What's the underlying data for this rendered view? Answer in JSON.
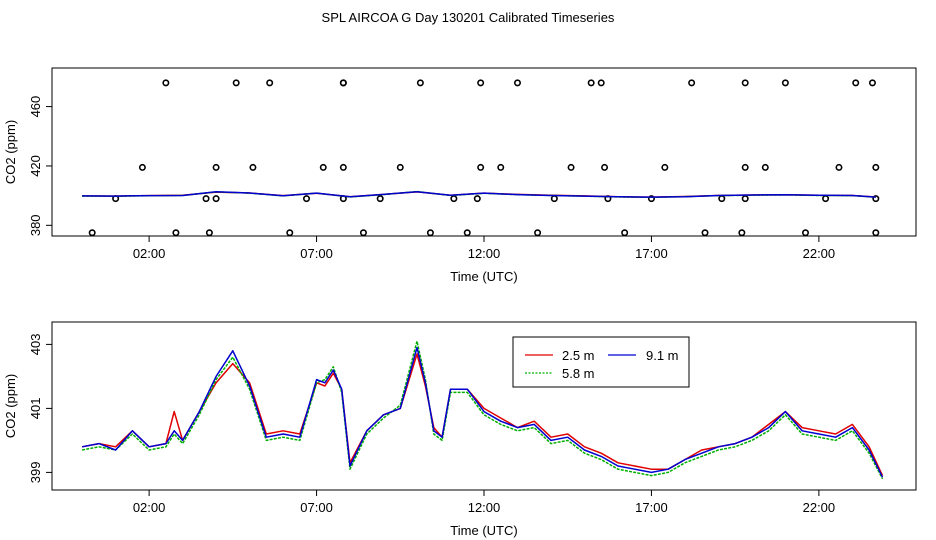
{
  "title": "SPL AIRCOA G  Day 130201  Calibrated Timeseries",
  "colors": {
    "2.5 m": "#e00000",
    "5.8 m": "#00b000",
    "9.1 m": "#0000d0",
    "axis": "#000000"
  },
  "chart_data": [
    {
      "type": "scatter+line",
      "xlabel": "Time (UTC)",
      "ylabel": "CO2 (ppm)",
      "xlim": [
        -0.9,
        24.9
      ],
      "ylim": [
        372.8,
        486
      ],
      "x_ticks": [
        2,
        7,
        12,
        17,
        22
      ],
      "x_tick_labels": [
        "02:00",
        "07:00",
        "12:00",
        "17:00",
        "22:00"
      ],
      "y_ticks": [
        380,
        420,
        460
      ],
      "y_tick_labels": [
        "380",
        "420",
        "460"
      ],
      "flagged_points": {
        "x": [
          0.3,
          1.0,
          1.8,
          2.5,
          2.8,
          3.7,
          3.8,
          4.0,
          4.0,
          4.6,
          5.1,
          5.6,
          6.2,
          6.7,
          7.2,
          7.8,
          7.8,
          7.8,
          7.8,
          8.4,
          8.9,
          9.5,
          10.1,
          10.4,
          11.1,
          11.5,
          11.8,
          11.9,
          11.9,
          12.5,
          13.0,
          13.6,
          14.1,
          14.6,
          15.2,
          15.5,
          15.6,
          15.7,
          16.2,
          17.0,
          17.4,
          18.2,
          18.6,
          19.1,
          19.7,
          19.8,
          19.8,
          19.8,
          20.4,
          21.0,
          21.6,
          22.2,
          22.6,
          23.1,
          23.6,
          23.7,
          23.7,
          23.7
        ],
        "y": [
          375,
          398,
          419,
          476,
          375,
          398,
          375,
          398,
          419,
          476,
          419,
          476,
          375,
          398,
          419,
          476,
          476,
          419,
          398,
          375,
          398,
          419,
          476,
          375,
          398,
          375,
          398,
          419,
          476,
          419,
          476,
          375,
          398,
          419,
          476,
          476,
          419,
          398,
          375,
          398,
          419,
          476,
          375,
          398,
          375,
          398,
          419,
          476,
          419,
          476,
          375,
          398,
          419,
          476,
          476,
          419,
          398,
          375
        ]
      },
      "series": [
        {
          "name": "2.5 m",
          "color": "#e00000",
          "x": [
            0,
            1,
            2,
            3,
            4,
            5,
            6,
            7,
            8,
            9,
            10,
            11,
            12,
            13,
            14,
            15,
            16,
            17,
            18,
            19,
            20,
            21,
            22,
            23,
            23.7
          ],
          "y": [
            399.8,
            399.7,
            400.0,
            400.2,
            402.4,
            401.8,
            400.0,
            401.6,
            399.3,
            400.8,
            402.5,
            400.2,
            401.7,
            400.8,
            400.2,
            399.8,
            399.2,
            399.0,
            399.4,
            400.1,
            400.4,
            400.6,
            400.2,
            400.1,
            399.1
          ]
        },
        {
          "name": "5.8 m",
          "color": "#00b000",
          "x": [
            0,
            1,
            2,
            3,
            4,
            5,
            6,
            7,
            8,
            9,
            10,
            11,
            12,
            13,
            14,
            15,
            16,
            17,
            18,
            19,
            20,
            21,
            22,
            23,
            23.7
          ],
          "y": [
            399.7,
            399.6,
            399.9,
            400.1,
            402.5,
            401.7,
            399.8,
            401.7,
            399.1,
            400.7,
            402.8,
            400.1,
            401.6,
            400.6,
            400.1,
            399.6,
            399.1,
            398.9,
            399.3,
            400.0,
            400.3,
            400.5,
            400.1,
            400.0,
            398.9
          ]
        },
        {
          "name": "9.1 m",
          "color": "#0000d0",
          "x": [
            0,
            1,
            2,
            3,
            4,
            5,
            6,
            7,
            8,
            9,
            10,
            11,
            12,
            13,
            14,
            15,
            16,
            17,
            18,
            19,
            20,
            21,
            22,
            23,
            23.7
          ],
          "y": [
            399.8,
            399.7,
            400.0,
            400.1,
            402.6,
            401.8,
            399.9,
            401.7,
            399.2,
            400.8,
            402.6,
            400.2,
            401.7,
            400.7,
            400.1,
            399.7,
            399.2,
            399.0,
            399.3,
            400.1,
            400.4,
            400.6,
            400.2,
            400.1,
            399.0
          ]
        }
      ]
    },
    {
      "type": "line",
      "xlabel": "Time (UTC)",
      "ylabel": "CO2 (ppm)",
      "xlim": [
        -0.9,
        24.9
      ],
      "ylim": [
        398.45,
        403.7
      ],
      "x_ticks": [
        2,
        7,
        12,
        17,
        22
      ],
      "x_tick_labels": [
        "02:00",
        "07:00",
        "12:00",
        "17:00",
        "22:00"
      ],
      "y_ticks": [
        399,
        401,
        403
      ],
      "y_tick_labels": [
        "399",
        "401",
        "403"
      ],
      "legend": {
        "position": "top-center",
        "entries": [
          "2.5 m",
          "5.8 m",
          "9.1 m"
        ]
      },
      "series": [
        {
          "name": "2.5 m",
          "color": "#e00000",
          "x": [
            0,
            0.5,
            1,
            1.5,
            2,
            2.5,
            2.75,
            3,
            3.5,
            4,
            4.5,
            5,
            5.5,
            6,
            6.5,
            7,
            7.25,
            7.5,
            7.75,
            8,
            8.5,
            9,
            9.5,
            10,
            10.25,
            10.5,
            10.75,
            11,
            11.5,
            12,
            12.5,
            13,
            13.5,
            14,
            14.5,
            15,
            15.5,
            16,
            16.5,
            17,
            17.5,
            18,
            18.5,
            19,
            19.5,
            20,
            20.5,
            21,
            21.5,
            22,
            22.5,
            23,
            23.5,
            23.9
          ],
          "y": [
            399.8,
            399.9,
            399.8,
            400.3,
            399.8,
            399.9,
            400.9,
            400.0,
            400.9,
            401.8,
            402.4,
            401.8,
            400.2,
            400.3,
            400.2,
            401.8,
            401.7,
            402.1,
            401.6,
            399.3,
            400.3,
            400.8,
            401.0,
            402.7,
            401.7,
            400.4,
            400.1,
            401.6,
            401.6,
            401.0,
            400.7,
            400.4,
            400.6,
            400.1,
            400.2,
            399.8,
            399.6,
            399.3,
            399.2,
            399.1,
            399.1,
            399.4,
            399.7,
            399.8,
            399.9,
            400.1,
            400.5,
            400.9,
            400.4,
            400.3,
            400.2,
            400.5,
            399.8,
            398.9
          ]
        },
        {
          "name": "5.8 m",
          "color": "#00b000",
          "x": [
            0,
            0.5,
            1,
            1.5,
            2,
            2.5,
            2.75,
            3,
            3.5,
            4,
            4.5,
            5,
            5.5,
            6,
            6.5,
            7,
            7.25,
            7.5,
            7.75,
            8,
            8.5,
            9,
            9.5,
            10,
            10.25,
            10.5,
            10.75,
            11,
            11.5,
            12,
            12.5,
            13,
            13.5,
            14,
            14.5,
            15,
            15.5,
            16,
            16.5,
            17,
            17.5,
            18,
            18.5,
            19,
            19.5,
            20,
            20.5,
            21,
            21.5,
            22,
            22.5,
            23,
            23.5,
            23.9
          ],
          "y": [
            399.7,
            399.8,
            399.7,
            400.2,
            399.7,
            399.8,
            400.2,
            399.9,
            400.8,
            401.9,
            402.6,
            401.6,
            400.0,
            400.1,
            400.0,
            401.8,
            401.9,
            402.3,
            401.5,
            399.1,
            400.2,
            400.7,
            401.1,
            403.1,
            401.9,
            400.2,
            400.0,
            401.5,
            401.5,
            400.8,
            400.5,
            400.3,
            400.4,
            399.9,
            400.0,
            399.6,
            399.4,
            399.1,
            399.0,
            398.9,
            399.0,
            399.3,
            399.5,
            399.7,
            399.8,
            400.0,
            400.3,
            400.8,
            400.2,
            400.1,
            400.0,
            400.3,
            399.6,
            398.8
          ]
        },
        {
          "name": "9.1 m",
          "color": "#0000d0",
          "x": [
            0,
            0.5,
            1,
            1.5,
            2,
            2.5,
            2.75,
            3,
            3.5,
            4,
            4.5,
            5,
            5.5,
            6,
            6.5,
            7,
            7.25,
            7.5,
            7.75,
            8,
            8.5,
            9,
            9.5,
            10,
            10.25,
            10.5,
            10.75,
            11,
            11.5,
            12,
            12.5,
            13,
            13.5,
            14,
            14.5,
            15,
            15.5,
            16,
            16.5,
            17,
            17.5,
            18,
            18.5,
            19,
            19.5,
            20,
            20.5,
            21,
            21.5,
            22,
            22.5,
            23,
            23.5,
            23.9
          ],
          "y": [
            399.8,
            399.9,
            399.7,
            400.3,
            399.8,
            399.9,
            400.3,
            400.0,
            400.9,
            402.0,
            402.8,
            401.7,
            400.1,
            400.2,
            400.1,
            401.9,
            401.8,
            402.2,
            401.6,
            399.2,
            400.3,
            400.8,
            401.0,
            402.9,
            401.8,
            400.3,
            400.1,
            401.6,
            401.6,
            400.9,
            400.6,
            400.4,
            400.5,
            400.0,
            400.1,
            399.7,
            399.5,
            399.2,
            399.1,
            399.0,
            399.1,
            399.4,
            399.6,
            399.8,
            399.9,
            400.1,
            400.4,
            400.9,
            400.3,
            400.2,
            400.1,
            400.4,
            399.7,
            398.85
          ]
        }
      ]
    }
  ]
}
